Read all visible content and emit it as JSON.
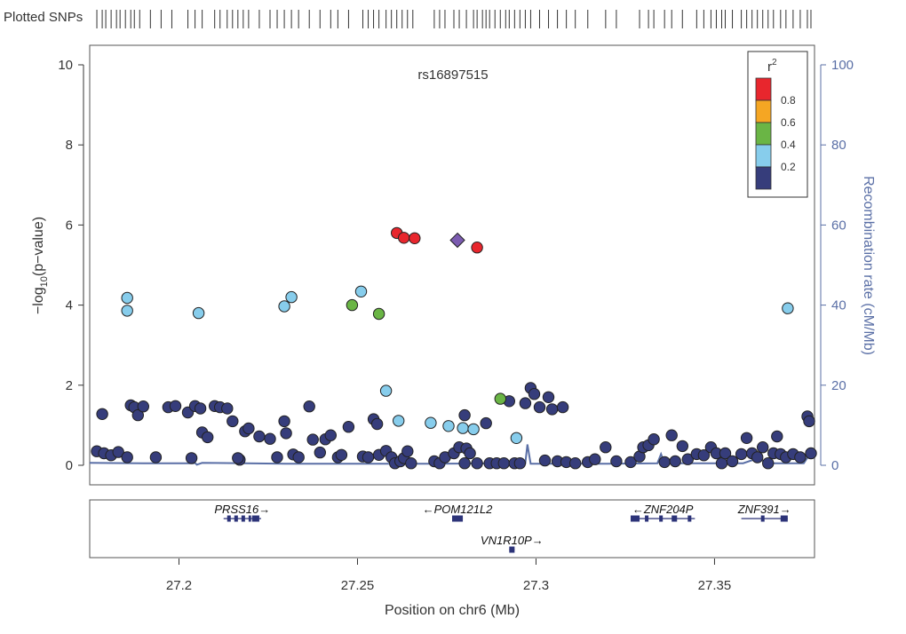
{
  "chart_data": {
    "type": "scatter",
    "title": "rs16897515",
    "xlabel": "Position on chr6 (Mb)",
    "ylabel": "-log10(p-value)",
    "ylabel_right": "Recombination rate (cM/Mb)",
    "plotted_snps_label": "Plotted SNPs",
    "xlim": [
      27.175,
      27.378
    ],
    "ylim": [
      0,
      10
    ],
    "ylim_right": [
      0,
      100
    ],
    "x_ticks": [
      27.2,
      27.25,
      27.3,
      27.35
    ],
    "x_tick_labels": [
      "27.2",
      "27.25",
      "27.3",
      "27.35"
    ],
    "y_ticks": [
      0,
      2,
      4,
      6,
      8,
      10
    ],
    "y_tick_labels": [
      "0",
      "2",
      "4",
      "6",
      "8",
      "10"
    ],
    "y_right_ticks": [
      0,
      20,
      40,
      60,
      80,
      100
    ],
    "y_right_tick_labels": [
      "0",
      "20",
      "40",
      "60",
      "80",
      "100"
    ],
    "legend": {
      "title": "r",
      "title_sup": "2",
      "bins": [
        {
          "label": "0.8",
          "color": "#e8262d"
        },
        {
          "label": "0.6",
          "color": "#f5a623"
        },
        {
          "label": "0.4",
          "color": "#6ab545"
        },
        {
          "label": "0.2",
          "color": "#87cdec"
        },
        {
          "label": "",
          "color": "#363d7b"
        }
      ]
    },
    "lead_snp": {
      "name": "rs16897515",
      "x": 27.278,
      "y": 5.62,
      "color": "#7b5bb0"
    },
    "series": [
      {
        "name": "r2 > 0.8",
        "color": "#e8262d",
        "points": [
          [
            27.261,
            5.8
          ],
          [
            27.263,
            5.68
          ],
          [
            27.266,
            5.67
          ],
          [
            27.2835,
            5.44
          ]
        ]
      },
      {
        "name": "0.4 < r2 <= 0.6",
        "color": "#6ab545",
        "points": [
          [
            27.2485,
            4.0
          ],
          [
            27.256,
            3.78
          ],
          [
            27.29,
            1.66
          ]
        ]
      },
      {
        "name": "0.2 < r2 <= 0.4",
        "color": "#87cdec",
        "points": [
          [
            27.1855,
            4.18
          ],
          [
            27.1855,
            3.86
          ],
          [
            27.2055,
            3.8
          ],
          [
            27.2295,
            3.97
          ],
          [
            27.2315,
            4.2
          ],
          [
            27.251,
            4.34
          ],
          [
            27.258,
            1.86
          ],
          [
            27.2615,
            1.11
          ],
          [
            27.2705,
            1.06
          ],
          [
            27.2755,
            0.98
          ],
          [
            27.2795,
            0.93
          ],
          [
            27.2825,
            0.9
          ],
          [
            27.2945,
            0.68
          ],
          [
            27.3705,
            3.92
          ]
        ]
      },
      {
        "name": "r2 <= 0.2",
        "color": "#363d7b",
        "points": [
          [
            27.177,
            0.35
          ],
          [
            27.179,
            0.3
          ],
          [
            27.181,
            0.25
          ],
          [
            27.183,
            0.33
          ],
          [
            27.1855,
            0.2
          ],
          [
            27.1865,
            1.5
          ],
          [
            27.1875,
            1.45
          ],
          [
            27.1885,
            1.25
          ],
          [
            27.19,
            1.47
          ],
          [
            27.1785,
            1.28
          ],
          [
            27.1935,
            0.2
          ],
          [
            27.197,
            1.45
          ],
          [
            27.199,
            1.48
          ],
          [
            27.2025,
            1.32
          ],
          [
            27.2035,
            0.18
          ],
          [
            27.2045,
            1.48
          ],
          [
            27.206,
            1.42
          ],
          [
            27.2065,
            0.82
          ],
          [
            27.208,
            0.7
          ],
          [
            27.21,
            1.48
          ],
          [
            27.2115,
            1.45
          ],
          [
            27.2135,
            1.42
          ],
          [
            27.215,
            1.1
          ],
          [
            27.217,
            0.14
          ],
          [
            27.2165,
            0.18
          ],
          [
            27.2185,
            0.85
          ],
          [
            27.2195,
            0.92
          ],
          [
            27.2225,
            0.72
          ],
          [
            27.2255,
            0.66
          ],
          [
            27.2275,
            0.2
          ],
          [
            27.2295,
            1.1
          ],
          [
            27.23,
            0.8
          ],
          [
            27.232,
            0.27
          ],
          [
            27.2335,
            0.2
          ],
          [
            27.2365,
            1.47
          ],
          [
            27.2375,
            0.64
          ],
          [
            27.2395,
            0.32
          ],
          [
            27.241,
            0.65
          ],
          [
            27.2425,
            0.75
          ],
          [
            27.2445,
            0.2
          ],
          [
            27.2455,
            0.26
          ],
          [
            27.2475,
            0.96
          ],
          [
            27.2515,
            0.22
          ],
          [
            27.253,
            0.2
          ],
          [
            27.2545,
            1.15
          ],
          [
            27.2555,
            1.03
          ],
          [
            27.256,
            0.26
          ],
          [
            27.258,
            0.36
          ],
          [
            27.2595,
            0.2
          ],
          [
            27.2605,
            0.05
          ],
          [
            27.262,
            0.1
          ],
          [
            27.263,
            0.18
          ],
          [
            27.264,
            0.35
          ],
          [
            27.265,
            0.05
          ],
          [
            27.2715,
            0.1
          ],
          [
            27.273,
            0.05
          ],
          [
            27.2745,
            0.2
          ],
          [
            27.277,
            0.3
          ],
          [
            27.2785,
            0.45
          ],
          [
            27.2805,
            0.42
          ],
          [
            27.2815,
            0.3
          ],
          [
            27.28,
            1.25
          ],
          [
            27.28,
            0.05
          ],
          [
            27.2835,
            0.05
          ],
          [
            27.286,
            1.05
          ],
          [
            27.287,
            0.05
          ],
          [
            27.289,
            0.05
          ],
          [
            27.291,
            0.05
          ],
          [
            27.2925,
            1.6
          ],
          [
            27.294,
            0.05
          ],
          [
            27.2955,
            0.05
          ],
          [
            27.297,
            1.55
          ],
          [
            27.2985,
            1.93
          ],
          [
            27.2995,
            1.78
          ],
          [
            27.301,
            1.45
          ],
          [
            27.3025,
            0.12
          ],
          [
            27.3035,
            1.7
          ],
          [
            27.3045,
            1.4
          ],
          [
            27.306,
            0.1
          ],
          [
            27.3075,
            1.45
          ],
          [
            27.3085,
            0.08
          ],
          [
            27.311,
            0.05
          ],
          [
            27.3145,
            0.08
          ],
          [
            27.3165,
            0.15
          ],
          [
            27.3195,
            0.45
          ],
          [
            27.3225,
            0.1
          ],
          [
            27.3265,
            0.08
          ],
          [
            27.329,
            0.22
          ],
          [
            27.33,
            0.45
          ],
          [
            27.3315,
            0.5
          ],
          [
            27.333,
            0.65
          ],
          [
            27.336,
            0.08
          ],
          [
            27.338,
            0.75
          ],
          [
            27.339,
            0.1
          ],
          [
            27.341,
            0.48
          ],
          [
            27.3425,
            0.15
          ],
          [
            27.345,
            0.28
          ],
          [
            27.347,
            0.25
          ],
          [
            27.349,
            0.45
          ],
          [
            27.3505,
            0.3
          ],
          [
            27.352,
            0.05
          ],
          [
            27.353,
            0.3
          ],
          [
            27.355,
            0.1
          ],
          [
            27.3575,
            0.28
          ],
          [
            27.359,
            0.68
          ],
          [
            27.3605,
            0.3
          ],
          [
            27.362,
            0.2
          ],
          [
            27.3635,
            0.45
          ],
          [
            27.365,
            0.05
          ],
          [
            27.3665,
            0.3
          ],
          [
            27.3675,
            0.72
          ],
          [
            27.3685,
            0.28
          ],
          [
            27.37,
            0.2
          ],
          [
            27.372,
            0.28
          ],
          [
            27.374,
            0.2
          ],
          [
            27.376,
            1.22
          ],
          [
            27.3765,
            1.1
          ],
          [
            27.377,
            0.3
          ]
        ]
      }
    ],
    "recombination_rate": {
      "color": "#5a6fa6",
      "points": [
        [
          27.175,
          0.6
        ],
        [
          27.19,
          0.5
        ],
        [
          27.204,
          0.5
        ],
        [
          27.2045,
          0.6
        ],
        [
          27.205,
          0.15
        ],
        [
          27.2065,
          0.6
        ],
        [
          27.23,
          0.4
        ],
        [
          27.2625,
          0.4
        ],
        [
          27.27,
          0.4
        ],
        [
          27.297,
          0.5
        ],
        [
          27.2976,
          5.2
        ],
        [
          27.2985,
          0.4
        ],
        [
          27.32,
          0.4
        ],
        [
          27.334,
          0.5
        ],
        [
          27.335,
          2.8
        ],
        [
          27.336,
          0.5
        ],
        [
          27.358,
          0.5
        ],
        [
          27.362,
          1.7
        ],
        [
          27.363,
          1.7
        ],
        [
          27.364,
          0.5
        ],
        [
          27.375,
          0.5
        ],
        [
          27.376,
          1.9
        ],
        [
          27.378,
          1.9
        ]
      ]
    },
    "snp_rug_x": [
      27.177,
      27.1785,
      27.1795,
      27.181,
      27.1825,
      27.1835,
      27.185,
      27.1865,
      27.1875,
      27.189,
      27.192,
      27.195,
      27.198,
      27.2025,
      27.2045,
      27.2065,
      27.21,
      27.2115,
      27.2135,
      27.215,
      27.2165,
      27.218,
      27.2195,
      27.2225,
      27.2255,
      27.2275,
      27.2295,
      27.2315,
      27.2335,
      27.2365,
      27.2395,
      27.2425,
      27.2445,
      27.2475,
      27.2515,
      27.253,
      27.2545,
      27.256,
      27.258,
      27.2595,
      27.261,
      27.2625,
      27.264,
      27.2655,
      27.2715,
      27.273,
      27.2745,
      27.277,
      27.2785,
      27.2805,
      27.2825,
      27.2835,
      27.285,
      27.286,
      27.287,
      27.2885,
      27.29,
      27.2915,
      27.2925,
      27.294,
      27.2955,
      27.297,
      27.2985,
      27.301,
      27.3035,
      27.306,
      27.3085,
      27.311,
      27.3145,
      27.3195,
      27.3225,
      27.329,
      27.3315,
      27.333,
      27.336,
      27.338,
      27.341,
      27.345,
      27.347,
      27.349,
      27.3505,
      27.352,
      27.353,
      27.355,
      27.3575,
      27.359,
      27.3605,
      27.362,
      27.3635,
      27.365,
      27.3665,
      27.3685,
      27.37,
      27.372,
      27.374,
      27.376,
      27.377
    ],
    "genes": [
      {
        "name": "PRSS16",
        "strand": "+",
        "start": 27.2125,
        "end": 27.223,
        "exons": [
          [
            27.2135,
            27.2145
          ],
          [
            27.2155,
            27.2165
          ],
          [
            27.2175,
            27.2185
          ],
          [
            27.2195,
            27.2202
          ],
          [
            27.2205,
            27.2212
          ],
          [
            27.2205,
            27.2225
          ]
        ],
        "row": 0
      },
      {
        "name": "POM121L2",
        "strand": "-",
        "start": 27.2765,
        "end": 27.2795,
        "exons": [
          [
            27.2765,
            27.2795
          ]
        ],
        "row": 0
      },
      {
        "name": "ZNF204P",
        "strand": "-",
        "start": 27.3265,
        "end": 27.3445,
        "exons": [
          [
            27.3265,
            27.329
          ],
          [
            27.3305,
            27.3315
          ],
          [
            27.3345,
            27.3355
          ],
          [
            27.338,
            27.3395
          ],
          [
            27.3425,
            27.3435
          ]
        ],
        "row": 0
      },
      {
        "name": "ZNF391",
        "strand": "+",
        "start": 27.3575,
        "end": 27.3705,
        "exons": [
          [
            27.363,
            27.364
          ],
          [
            27.3685,
            27.3705
          ]
        ],
        "row": 0
      },
      {
        "name": "VN1R10P",
        "strand": "+",
        "start": 27.2925,
        "end": 27.294,
        "exons": [
          [
            27.2925,
            27.294
          ]
        ],
        "row": 1
      }
    ]
  }
}
